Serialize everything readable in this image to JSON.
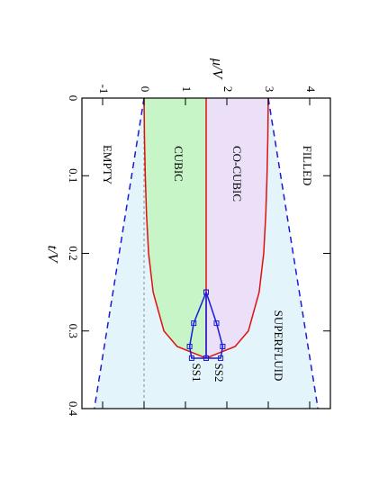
{
  "chart_data": {
    "type": "line",
    "x_label": "t/V",
    "y_label": "μ/V",
    "xlim": [
      0,
      0.4
    ],
    "xticks": [
      0,
      0.1,
      0.2,
      0.3,
      0.4
    ],
    "ylim": [
      -1.5,
      4.5
    ],
    "yticks": [
      -1,
      0,
      1,
      2,
      3,
      4
    ],
    "reference_line": 0,
    "superfluid_fill": "#e3f4fa",
    "series": [
      {
        "x": [
          0,
          0.4
        ],
        "values": [
          0,
          -1.2
        ],
        "color": "#1a1adb",
        "dashed": true
      },
      {
        "x": [
          0,
          0.4
        ],
        "values": [
          3,
          4.2
        ],
        "color": "#1a1adb",
        "dashed": true
      },
      {
        "x": [
          0,
          0.05,
          0.1,
          0.15,
          0.2,
          0.25,
          0.3,
          0.32,
          0.335
        ],
        "values": [
          0,
          0.01,
          0.03,
          0.06,
          0.11,
          0.22,
          0.48,
          0.8,
          1.5
        ],
        "color": "#e01010",
        "fill": "#c8f5c8"
      },
      {
        "x": [
          0,
          0.05,
          0.1,
          0.15,
          0.2,
          0.25,
          0.3,
          0.32,
          0.335
        ],
        "values": [
          3,
          2.99,
          2.97,
          2.94,
          2.89,
          2.78,
          2.52,
          2.2,
          1.5
        ],
        "color": "#e01010",
        "fill": "#ecdff8"
      },
      {
        "x": [
          0,
          0.335
        ],
        "values": [
          1.5,
          1.5
        ],
        "color": "#e01010"
      },
      {
        "x": [
          0.25,
          0.29,
          0.32,
          0.335,
          0.335
        ],
        "values": [
          1.5,
          1.2,
          1.1,
          1.15,
          1.5
        ],
        "color": "#1a1adb",
        "markers": true
      },
      {
        "x": [
          0.25,
          0.29,
          0.32,
          0.335,
          0.335
        ],
        "values": [
          1.5,
          1.75,
          1.9,
          1.85,
          1.5
        ],
        "color": "#1a1adb",
        "markers": true
      },
      {
        "x": [
          0.25,
          0.335
        ],
        "values": [
          1.5,
          1.5
        ],
        "color": "#1a1adb"
      }
    ],
    "annotations": [
      "EMPTY",
      "CUBIC",
      "CO-CUBIC",
      "FILLED",
      "SUPERFLUID",
      "SS1",
      "SS2"
    ]
  }
}
